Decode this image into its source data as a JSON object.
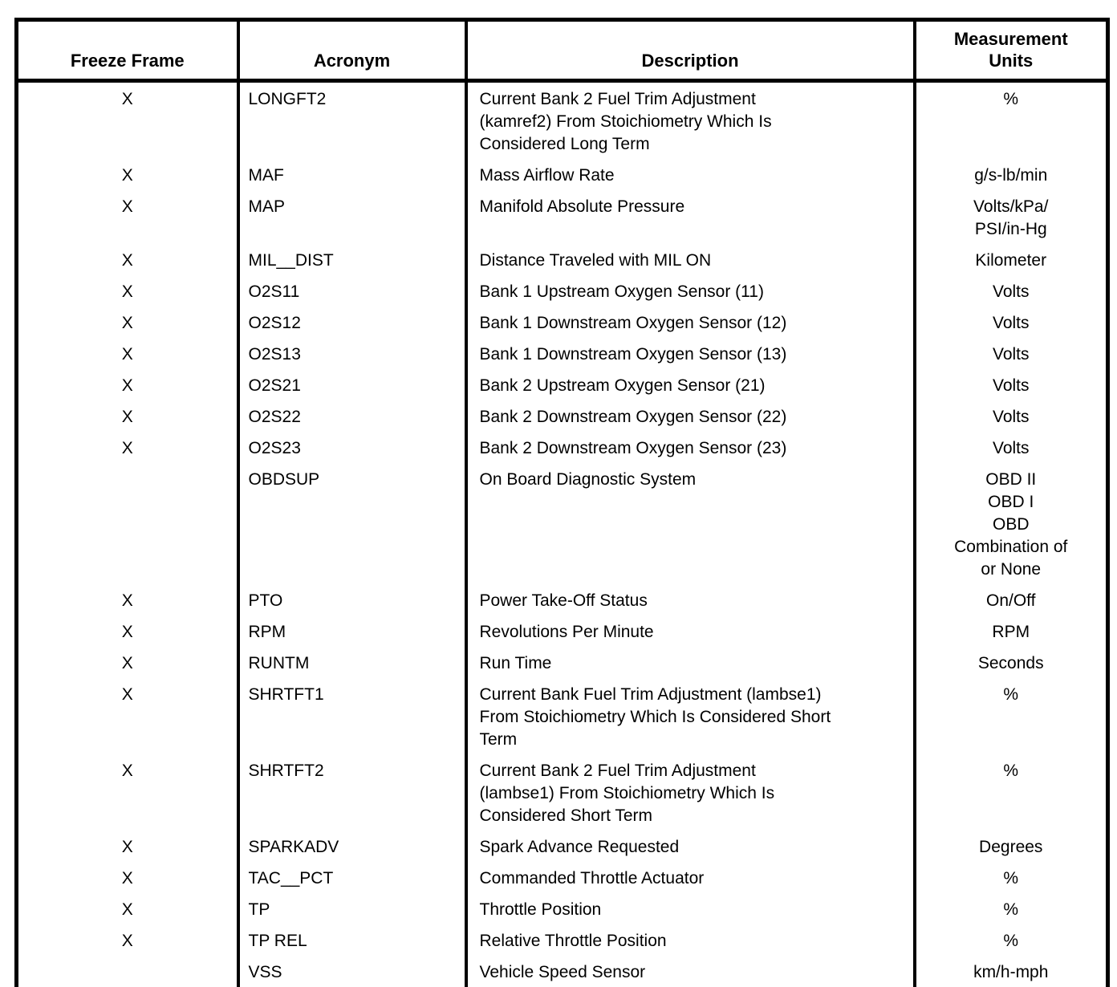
{
  "table": {
    "columns": [
      {
        "id": "freeze-frame",
        "label_lines": [
          "Freeze Frame"
        ]
      },
      {
        "id": "acronym",
        "label_lines": [
          "Acronym"
        ]
      },
      {
        "id": "description",
        "label_lines": [
          "Description"
        ]
      },
      {
        "id": "measurement-units",
        "label_lines": [
          "Measurement",
          "Units"
        ]
      }
    ],
    "rows": [
      {
        "freeze_frame": "X",
        "acronym": "LONGFT2",
        "description": [
          "Current Bank 2 Fuel Trim Adjustment",
          "(kamref2) From Stoichiometry Which Is",
          "Considered Long Term"
        ],
        "units": "%"
      },
      {
        "freeze_frame": "X",
        "acronym": "MAF",
        "description": "Mass Airflow Rate",
        "units": "g/s-lb/min"
      },
      {
        "freeze_frame": "X",
        "acronym": "MAP",
        "description": "Manifold Absolute Pressure",
        "units": [
          "Volts/kPa/",
          "PSI/in-Hg"
        ]
      },
      {
        "freeze_frame": "X",
        "acronym": "MIL__DIST",
        "description": "Distance Traveled with MIL ON",
        "units": "Kilometer"
      },
      {
        "freeze_frame": "X",
        "acronym": "O2S11",
        "description": "Bank 1 Upstream Oxygen Sensor (11)",
        "units": "Volts"
      },
      {
        "freeze_frame": "X",
        "acronym": "O2S12",
        "description": "Bank 1 Downstream Oxygen Sensor (12)",
        "units": "Volts"
      },
      {
        "freeze_frame": "X",
        "acronym": "O2S13",
        "description": "Bank 1 Downstream Oxygen Sensor (13)",
        "units": "Volts"
      },
      {
        "freeze_frame": "X",
        "acronym": "O2S21",
        "description": "Bank 2 Upstream Oxygen Sensor (21)",
        "units": "Volts"
      },
      {
        "freeze_frame": "X",
        "acronym": "O2S22",
        "description": "Bank 2 Downstream Oxygen Sensor (22)",
        "units": "Volts"
      },
      {
        "freeze_frame": "X",
        "acronym": "O2S23",
        "description": "Bank 2 Downstream Oxygen Sensor (23)",
        "units": "Volts"
      },
      {
        "freeze_frame": "",
        "acronym": "OBDSUP",
        "description": "On Board Diagnostic System",
        "units": [
          "OBD II",
          "OBD I",
          "OBD",
          "Combination of",
          "or None"
        ]
      },
      {
        "freeze_frame": "X",
        "acronym": "PTO",
        "description": "Power Take-Off Status",
        "units": "On/Off"
      },
      {
        "freeze_frame": "X",
        "acronym": "RPM",
        "description": "Revolutions Per Minute",
        "units": "RPM"
      },
      {
        "freeze_frame": "X",
        "acronym": "RUNTM",
        "description": "Run Time",
        "units": "Seconds"
      },
      {
        "freeze_frame": "X",
        "acronym": "SHRTFT1",
        "description": [
          "Current Bank Fuel Trim Adjustment (lambse1)",
          "From Stoichiometry Which Is Considered Short",
          "Term"
        ],
        "units": "%"
      },
      {
        "freeze_frame": "X",
        "acronym": "SHRTFT2",
        "description": [
          "Current Bank 2 Fuel Trim Adjustment",
          "(lambse1) From Stoichiometry Which Is",
          "Considered Short Term"
        ],
        "units": "%"
      },
      {
        "freeze_frame": "X",
        "acronym": "SPARKADV",
        "description": "Spark Advance Requested",
        "units": "Degrees"
      },
      {
        "freeze_frame": "X",
        "acronym": "TAC__PCT",
        "description": "Commanded Throttle Actuator",
        "units": "%"
      },
      {
        "freeze_frame": "X",
        "acronym": "TP",
        "description": "Throttle Position",
        "units": "%"
      },
      {
        "freeze_frame": "X",
        "acronym": "TP REL",
        "description": "Relative Throttle Position",
        "units": "%"
      },
      {
        "freeze_frame": "",
        "acronym": "VSS",
        "description": "Vehicle Speed Sensor",
        "units": "km/h-mph"
      }
    ]
  }
}
